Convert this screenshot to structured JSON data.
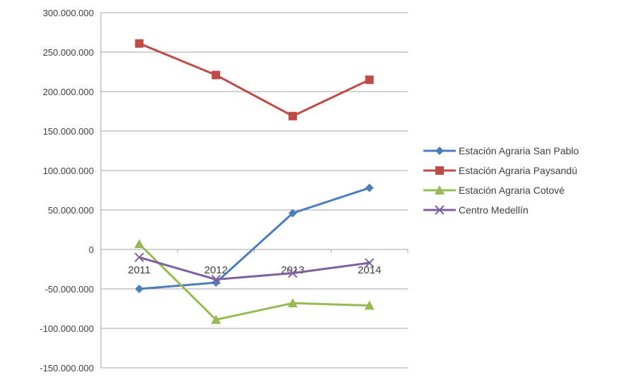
{
  "chart_data": {
    "type": "line",
    "title": "",
    "xlabel": "",
    "ylabel": "",
    "categories": [
      "2011",
      "2012",
      "2013",
      "2014"
    ],
    "ylim": [
      -150000000,
      300000000
    ],
    "yticks": [
      300000000,
      250000000,
      200000000,
      150000000,
      100000000,
      50000000,
      0,
      -50000000,
      -100000000,
      -150000000
    ],
    "ytick_labels": [
      "300.000.000",
      "250.000.000",
      "200.000.000",
      "150.000.000",
      "100.000.000",
      "50.000.000",
      "0",
      "-50.000.000",
      "-100.000.000",
      "-150.000.000"
    ],
    "grid": "horizontal",
    "legend_position": "right",
    "series": [
      {
        "name": "Estación Agraria San Pablo",
        "values": [
          -50000000,
          -42000000,
          46000000,
          78000000
        ],
        "color": "#4a7ebb",
        "marker": "diamond"
      },
      {
        "name": "Estación Agraria Paysandú",
        "values": [
          261000000,
          221000000,
          169000000,
          215000000
        ],
        "color": "#be4b48",
        "marker": "square"
      },
      {
        "name": "Estación Agraria Cotové",
        "values": [
          7000000,
          -89000000,
          -68000000,
          -71000000
        ],
        "color": "#98b954",
        "marker": "triangle"
      },
      {
        "name": "Centro Medellín",
        "values": [
          -10000000,
          -38000000,
          -30000000,
          -17000000
        ],
        "color": "#7d60a0",
        "marker": "x"
      }
    ]
  }
}
